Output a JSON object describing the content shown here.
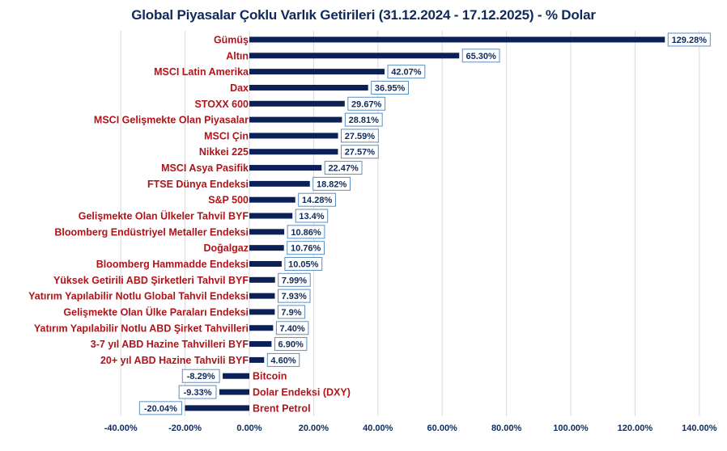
{
  "chart_data": {
    "type": "bar",
    "orientation": "horizontal",
    "title": "Global Piyasalar Çoklu Varlık Getirileri (31.12.2024 - 17.12.2025) - % Dolar",
    "xlabel": "",
    "ylabel": "",
    "xlim": [
      -40,
      140
    ],
    "grid": true,
    "legend": "none",
    "colors": {
      "bar": "#0a2057",
      "category_text": "#b0141b",
      "label_text": "#0f2a5a",
      "label_border": "#5b8fc0",
      "grid": "#d9d9d9"
    },
    "x_ticks": [
      -40,
      -20,
      0,
      20,
      40,
      60,
      80,
      100,
      120,
      140
    ],
    "x_tick_labels": [
      "-40.00%",
      "-20.00%",
      "0.00%",
      "20.00%",
      "40.00%",
      "60.00%",
      "80.00%",
      "100.00%",
      "120.00%",
      "140.00%"
    ],
    "categories": [
      "Gümüş",
      "Altın",
      "MSCI Latin Amerika",
      "Dax",
      "STOXX 600",
      "MSCI Gelişmekte Olan Piyasalar",
      "MSCI Çin",
      "Nikkei 225",
      "MSCI Asya Pasifik",
      "FTSE Dünya Endeksi",
      "S&P 500",
      "Gelişmekte Olan Ülkeler Tahvil BYF",
      "Bloomberg Endüstriyel Metaller Endeksi",
      "Doğalgaz",
      "Bloomberg Hammadde Endeksi",
      "Yüksek Getirili ABD Şirketleri Tahvil BYF",
      "Yatırım Yapılabilir Notlu Global Tahvil Endeksi",
      "Gelişmekte Olan Ülke Paraları Endeksi",
      "Yatırım Yapılabilir Notlu  ABD Şirket Tahvilleri",
      "3-7 yıl ABD Hazine Tahvilleri BYF",
      "20+ yıl ABD Hazine Tahvili BYF",
      "Bitcoin",
      "Dolar Endeksi (DXY)",
      "Brent Petrol"
    ],
    "values": [
      129.28,
      65.3,
      42.07,
      36.95,
      29.67,
      28.81,
      27.59,
      27.57,
      22.47,
      18.82,
      14.28,
      13.4,
      10.86,
      10.76,
      10.05,
      7.99,
      7.93,
      7.9,
      7.4,
      6.9,
      4.6,
      -8.29,
      -9.33,
      -20.04
    ],
    "data_labels": [
      "129.28%",
      "65.30%",
      "42.07%",
      "36.95%",
      "29.67%",
      "28.81%",
      "27.59%",
      "27.57%",
      "22.47%",
      "18.82%",
      "14.28%",
      "13.4%",
      "10.86%",
      "10.76%",
      "10.05%",
      "7.99%",
      "7.93%",
      "7.9%",
      "7.40%",
      "6.90%",
      "4.60%",
      "-8.29%",
      "-9.33%",
      "-20.04%"
    ]
  }
}
